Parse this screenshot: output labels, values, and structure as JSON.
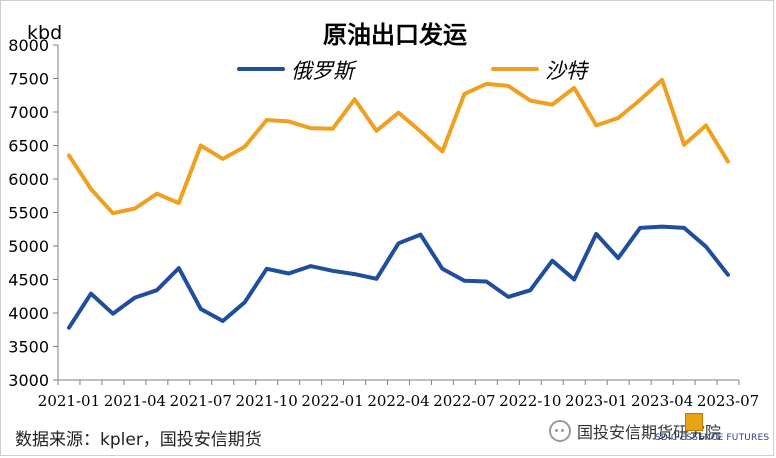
{
  "source": "数据来源：kpler，国投安信期货",
  "watermark": {
    "text": "国投安信期货研究院",
    "logo_text": "SDIC ESSENCE FUTURES",
    "icon": "wechat-icon"
  },
  "colors": {
    "russia": "#1f4e9c",
    "saudi": "#f0a020",
    "axis": "#7f7f7f",
    "title": "#000000"
  },
  "chart_data": {
    "type": "line",
    "title": "原油出口发运",
    "ylabel": "kbd",
    "xlabel": "",
    "ylim": [
      3000,
      8000
    ],
    "yticks": [
      3000,
      3500,
      4000,
      4500,
      5000,
      5500,
      6000,
      6500,
      7000,
      7500,
      8000
    ],
    "x": [
      "2021-01",
      "2021-02",
      "2021-03",
      "2021-04",
      "2021-05",
      "2021-06",
      "2021-07",
      "2021-08",
      "2021-09",
      "2021-10",
      "2021-11",
      "2021-12",
      "2022-01",
      "2022-02",
      "2022-03",
      "2022-04",
      "2022-05",
      "2022-06",
      "2022-07",
      "2022-08",
      "2022-09",
      "2022-10",
      "2022-11",
      "2022-12",
      "2023-01",
      "2023-02",
      "2023-03",
      "2023-04",
      "2023-05",
      "2023-06",
      "2023-07"
    ],
    "xtick_labels": [
      "2021-01",
      "2021-04",
      "2021-07",
      "2021-10",
      "2022-01",
      "2022-04",
      "2022-07",
      "2022-10",
      "2023-01",
      "2023-04",
      "2023-07"
    ],
    "grid": false,
    "legend": "top",
    "series": [
      {
        "name": "俄罗斯",
        "color": "#1f4e9c",
        "values": [
          3780,
          4290,
          3990,
          4230,
          4340,
          4670,
          4060,
          3880,
          4160,
          4660,
          4590,
          4700,
          4630,
          4580,
          4510,
          5040,
          5170,
          4660,
          4480,
          4470,
          4240,
          4340,
          4780,
          4500,
          5180,
          4820,
          5270,
          5290,
          5270,
          4990,
          4570
        ]
      },
      {
        "name": "沙特",
        "color": "#f0a020",
        "values": [
          6350,
          5850,
          5490,
          5560,
          5780,
          5640,
          6500,
          6300,
          6480,
          6880,
          6860,
          6760,
          6750,
          7190,
          6720,
          6990,
          6710,
          6410,
          7270,
          7420,
          7390,
          7170,
          7110,
          7360,
          6800,
          6910,
          7180,
          7480,
          6510,
          6800,
          6260
        ]
      }
    ]
  }
}
